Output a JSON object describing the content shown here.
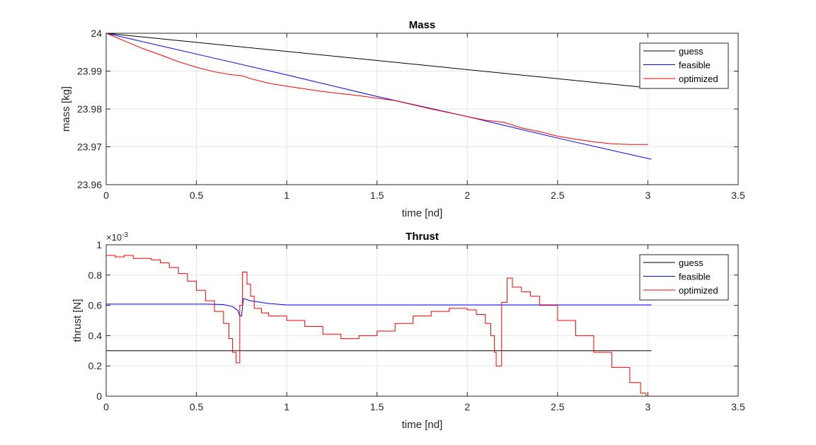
{
  "colors": {
    "guess": "#000000",
    "feasible": "#0000ff",
    "optimized": "#ff0000",
    "grid": "#e6e6e6",
    "axis": "#262626"
  },
  "chart_data": [
    {
      "type": "line",
      "title": "Mass",
      "xlabel": "time [nd]",
      "ylabel": "mass [kg]",
      "xlim": [
        0,
        3.5
      ],
      "ylim": [
        23.96,
        24
      ],
      "xticks": [
        0,
        0.5,
        1,
        1.5,
        2,
        2.5,
        3,
        3.5
      ],
      "xtick_labels": [
        "0",
        "0.5",
        "1",
        "1.5",
        "2",
        "2.5",
        "3",
        "3.5"
      ],
      "yticks": [
        23.96,
        23.97,
        23.98,
        23.99,
        24
      ],
      "ytick_labels": [
        "23.96",
        "23.97",
        "23.98",
        "23.99",
        "24"
      ],
      "grid": true,
      "legend": {
        "location": "top-right",
        "entries": [
          "guess",
          "feasible",
          "optimized"
        ]
      },
      "series": [
        {
          "name": "guess",
          "color_key": "guess",
          "step": false,
          "points": [
            [
              0,
              24.0
            ],
            [
              3.02,
              23.9855
            ]
          ]
        },
        {
          "name": "feasible",
          "color_key": "feasible",
          "step": false,
          "points": [
            [
              0,
              24.0
            ],
            [
              0.5,
              23.9945
            ],
            [
              1,
              23.989
            ],
            [
              1.5,
              23.9833
            ],
            [
              2,
              23.978
            ],
            [
              2.5,
              23.9723
            ],
            [
              3.02,
              23.9667
            ]
          ]
        },
        {
          "name": "optimized",
          "color_key": "optimized",
          "step": false,
          "points": [
            [
              0,
              24.0
            ],
            [
              0.1,
              23.998
            ],
            [
              0.2,
              23.996
            ],
            [
              0.3,
              23.9943
            ],
            [
              0.4,
              23.9925
            ],
            [
              0.5,
              23.991
            ],
            [
              0.6,
              23.9898
            ],
            [
              0.7,
              23.989
            ],
            [
              0.75,
              23.9888
            ],
            [
              0.8,
              23.988
            ],
            [
              0.9,
              23.9868
            ],
            [
              1.0,
              23.986
            ],
            [
              1.2,
              23.9846
            ],
            [
              1.4,
              23.9835
            ],
            [
              1.6,
              23.9822
            ],
            [
              1.8,
              23.98
            ],
            [
              2.0,
              23.978
            ],
            [
              2.1,
              23.977
            ],
            [
              2.2,
              23.9765
            ],
            [
              2.3,
              23.975
            ],
            [
              2.4,
              23.974
            ],
            [
              2.5,
              23.9728
            ],
            [
              2.6,
              23.972
            ],
            [
              2.7,
              23.9713
            ],
            [
              2.8,
              23.9708
            ],
            [
              2.9,
              23.9706
            ],
            [
              3.0,
              23.9706
            ]
          ]
        }
      ]
    },
    {
      "type": "line",
      "title": "Thrust",
      "xlabel": "time [nd]",
      "ylabel": "thrust [N]",
      "y_multiplier": "×10",
      "y_multiplier_exp": "-3",
      "xlim": [
        0,
        3.5
      ],
      "ylim": [
        0,
        0.001
      ],
      "xticks": [
        0,
        0.5,
        1,
        1.5,
        2,
        2.5,
        3,
        3.5
      ],
      "xtick_labels": [
        "0",
        "0.5",
        "1",
        "1.5",
        "2",
        "2.5",
        "3",
        "3.5"
      ],
      "yticks": [
        0,
        0.0002,
        0.0004,
        0.0006,
        0.0008,
        0.001
      ],
      "ytick_labels": [
        "0",
        "0.2",
        "0.4",
        "0.6",
        "0.8",
        "1"
      ],
      "grid": true,
      "legend": {
        "location": "top-right",
        "entries": [
          "guess",
          "feasible",
          "optimized"
        ]
      },
      "series": [
        {
          "name": "guess",
          "color_key": "guess",
          "step": false,
          "points": [
            [
              0,
              0.0003
            ],
            [
              3.02,
              0.0003
            ]
          ]
        },
        {
          "name": "feasible",
          "color_key": "feasible",
          "step": false,
          "points": [
            [
              0,
              0.000608
            ],
            [
              0.55,
              0.000608
            ],
            [
              0.65,
              0.000605
            ],
            [
              0.7,
              0.000592
            ],
            [
              0.73,
              0.000565
            ],
            [
              0.74,
              0.00053
            ],
            [
              0.75,
              0.00053
            ],
            [
              0.76,
              0.000645
            ],
            [
              0.8,
              0.00063
            ],
            [
              0.9,
              0.000612
            ],
            [
              1.0,
              0.000603
            ],
            [
              1.5,
              0.000603
            ],
            [
              2.0,
              0.000603
            ],
            [
              2.5,
              0.000603
            ],
            [
              3.02,
              0.000603
            ]
          ]
        },
        {
          "name": "optimized",
          "color_key": "optimized",
          "step": true,
          "points": [
            [
              0,
              0.00093
            ],
            [
              0.05,
              0.00092
            ],
            [
              0.1,
              0.00093
            ],
            [
              0.15,
              0.00091
            ],
            [
              0.2,
              0.00091
            ],
            [
              0.25,
              0.0009
            ],
            [
              0.3,
              0.00088
            ],
            [
              0.35,
              0.00085
            ],
            [
              0.4,
              0.00081
            ],
            [
              0.45,
              0.00076
            ],
            [
              0.5,
              0.0007
            ],
            [
              0.55,
              0.00063
            ],
            [
              0.6,
              0.00056
            ],
            [
              0.65,
              0.00048
            ],
            [
              0.68,
              0.00038
            ],
            [
              0.7,
              0.00029
            ],
            [
              0.72,
              0.00022
            ],
            [
              0.74,
              0.0006
            ],
            [
              0.755,
              0.00082
            ],
            [
              0.78,
              0.00074
            ],
            [
              0.8,
              0.00066
            ],
            [
              0.82,
              0.00058
            ],
            [
              0.86,
              0.00055
            ],
            [
              0.9,
              0.00053
            ],
            [
              1.0,
              0.0005
            ],
            [
              1.1,
              0.00046
            ],
            [
              1.2,
              0.00041
            ],
            [
              1.3,
              0.00038
            ],
            [
              1.4,
              0.0004
            ],
            [
              1.5,
              0.00043
            ],
            [
              1.6,
              0.00048
            ],
            [
              1.7,
              0.00053
            ],
            [
              1.8,
              0.00056
            ],
            [
              1.9,
              0.00058
            ],
            [
              2.0,
              0.00057
            ],
            [
              2.05,
              0.00054
            ],
            [
              2.1,
              0.00048
            ],
            [
              2.13,
              0.0004
            ],
            [
              2.15,
              0.00029
            ],
            [
              2.16,
              0.0002
            ],
            [
              2.19,
              0.00062
            ],
            [
              2.22,
              0.00078
            ],
            [
              2.25,
              0.00072
            ],
            [
              2.3,
              0.00069
            ],
            [
              2.35,
              0.00066
            ],
            [
              2.4,
              0.0006
            ],
            [
              2.5,
              0.0005
            ],
            [
              2.6,
              0.0004
            ],
            [
              2.7,
              0.00029
            ],
            [
              2.8,
              0.00019
            ],
            [
              2.9,
              9e-05
            ],
            [
              2.96,
              2e-05
            ],
            [
              2.99,
              0.0
            ]
          ]
        }
      ]
    }
  ]
}
